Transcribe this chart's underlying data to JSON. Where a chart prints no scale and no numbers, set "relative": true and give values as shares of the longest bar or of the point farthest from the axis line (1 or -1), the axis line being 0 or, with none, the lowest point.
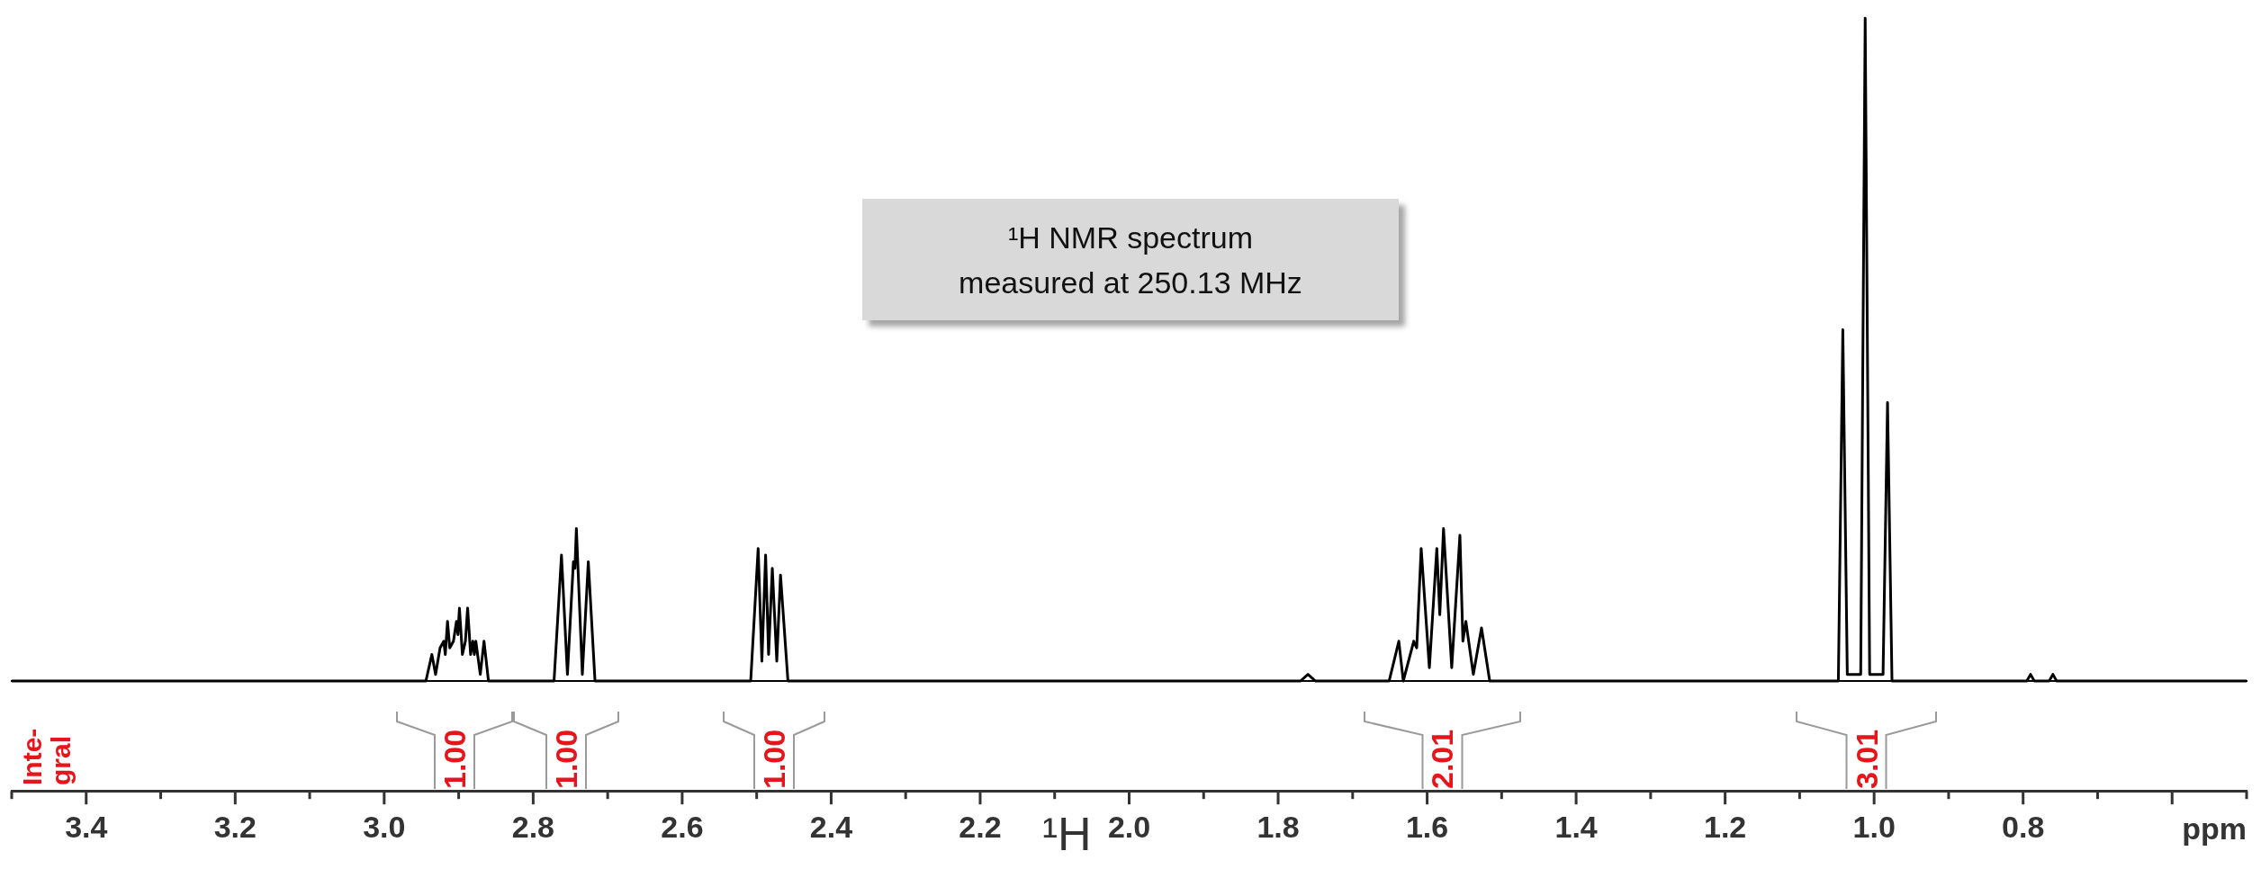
{
  "chart_data": {
    "type": "line",
    "relative": true,
    "xlabel": "ppm",
    "xlim": [
      3.5,
      0.5
    ],
    "xticks": [
      3.4,
      3.2,
      {
        "value": 3,
        "label": "3.0"
      },
      2.8,
      2.6,
      2.4,
      2.2,
      {
        "value": 2,
        "label": "2.0"
      },
      1.8,
      1.6,
      1.4,
      1.2,
      {
        "value": 1,
        "label": "1.0"
      },
      0.8
    ],
    "series": [
      {
        "color": "#000000",
        "x": [
          3.5,
          2.981,
          2.944,
          2.936,
          2.931,
          2.925,
          2.92,
          2.918,
          2.915,
          2.912,
          2.907,
          2.903,
          2.901,
          2.899,
          2.895,
          2.891,
          2.888,
          2.884,
          2.881,
          2.879,
          2.877,
          2.871,
          2.866,
          2.86,
          2.85,
          2.772,
          2.762,
          2.754,
          2.746,
          2.744,
          2.742,
          2.734,
          2.726,
          2.717,
          2.7,
          2.508,
          2.498,
          2.493,
          2.488,
          2.484,
          2.479,
          2.473,
          2.468,
          2.458,
          2.44,
          1.77,
          1.76,
          1.75,
          1.651,
          1.638,
          1.632,
          1.618,
          1.614,
          1.608,
          1.597,
          1.587,
          1.583,
          1.578,
          1.567,
          1.556,
          1.552,
          1.548,
          1.538,
          1.527,
          1.516,
          1.5,
          1.06,
          1.048,
          1.042,
          1.036,
          1.018,
          1.012,
          1.006,
          0.988,
          0.982,
          0.976,
          0.96,
          0.795,
          0.79,
          0.785,
          0.765,
          0.76,
          0.755,
          0.5
        ],
        "values": [
          0,
          0,
          0,
          0.04,
          0.01,
          0.05,
          0.06,
          0.04,
          0.09,
          0.05,
          0.06,
          0.09,
          0.07,
          0.11,
          0.04,
          0.06,
          0.11,
          0.04,
          0.06,
          0.04,
          0.06,
          0.01,
          0.06,
          0,
          0,
          0,
          0.19,
          0.01,
          0.18,
          0.17,
          0.23,
          0.01,
          0.18,
          0,
          0,
          0,
          0.2,
          0.03,
          0.19,
          0.04,
          0.17,
          0.03,
          0.16,
          0,
          0,
          0,
          0.01,
          0,
          0,
          0.06,
          0,
          0.06,
          0.05,
          0.2,
          0.02,
          0.2,
          0.1,
          0.23,
          0.02,
          0.22,
          0.06,
          0.09,
          0.01,
          0.08,
          0,
          0,
          0,
          0,
          0.53,
          0.01,
          0.01,
          1,
          0.01,
          0.01,
          0.42,
          0,
          0,
          0,
          0.01,
          0,
          0,
          0.01,
          0,
          0
        ]
      }
    ],
    "annotations": [
      "¹H NMR spectrum\nmeasured at 250.13 MHz",
      "Inte-\ngral",
      "¹H",
      "1.00",
      "1.00",
      "1.00",
      "2.01",
      "3.01"
    ]
  }
}
